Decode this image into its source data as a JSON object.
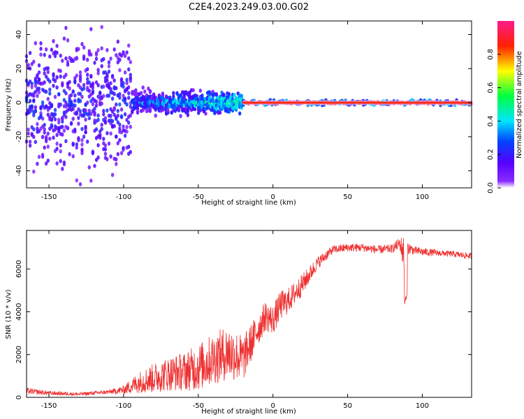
{
  "title": "C2E4.2023.249.03.00.G02",
  "chart_data": [
    {
      "type": "heatmap",
      "title": "C2E4.2023.249.03.00.G02",
      "xlabel": "Height of straight line (km)",
      "ylabel": "Frequency (Hz)",
      "xlim": [
        -165,
        133
      ],
      "ylim": [
        -50,
        48
      ],
      "xticks": [
        -150,
        -100,
        -50,
        0,
        50,
        100
      ],
      "xtick_labels": [
        "-150",
        "-100",
        "-50",
        "0",
        "50",
        "100"
      ],
      "yticks": [
        -40,
        -20,
        0,
        20,
        40
      ],
      "ytick_labels": [
        "-40",
        "-20",
        "0",
        "20",
        "40"
      ],
      "colorbar": {
        "label": "Normalized spectral amplitude",
        "range": [
          0,
          1
        ],
        "ticks": [
          0.0,
          0.2,
          0.4,
          0.6,
          0.8
        ],
        "tick_labels": [
          "0.0",
          "0.2",
          "0.4",
          "0.6",
          "0.8"
        ],
        "colors": [
          "#ffffff",
          "#7b00ff",
          "#0000ff",
          "#00ffff",
          "#00ff00",
          "#ffff00",
          "#ff0000",
          "#ff1a8c"
        ]
      },
      "description_regions": [
        {
          "x_range": [
            -165,
            -95
          ],
          "freq_spread": 48,
          "amplitude": 0.15
        },
        {
          "x_range": [
            -95,
            -20
          ],
          "freq_spread": 10,
          "amplitude": 0.4
        },
        {
          "x_range": [
            -20,
            133
          ],
          "freq_spread": 2,
          "amplitude": 0.95
        }
      ]
    },
    {
      "type": "line",
      "xlabel": "Height of straight line (km)",
      "ylabel": "SNR (10 * v/v)",
      "xlim": [
        -165,
        133
      ],
      "ylim": [
        0,
        7800
      ],
      "xticks": [
        -150,
        -100,
        -50,
        0,
        50,
        100
      ],
      "xtick_labels": [
        "-150",
        "-100",
        "-50",
        "0",
        "50",
        "100"
      ],
      "yticks": [
        0,
        2000,
        4000,
        6000
      ],
      "ytick_labels": [
        "0",
        "2000",
        "4000",
        "6000"
      ],
      "color": "#ee3030",
      "series": [
        {
          "name": "SNR",
          "x": [
            -165,
            -150,
            -130,
            -110,
            -100,
            -90,
            -80,
            -70,
            -60,
            -50,
            -40,
            -30,
            -20,
            -15,
            -10,
            -5,
            0,
            5,
            10,
            20,
            30,
            40,
            50,
            60,
            70,
            80,
            85,
            88,
            90,
            95,
            100,
            110,
            120,
            133
          ],
          "y": [
            300,
            200,
            150,
            250,
            350,
            700,
            900,
            1100,
            1200,
            1400,
            1800,
            2100,
            1800,
            2500,
            3200,
            3800,
            3600,
            4300,
            4500,
            5300,
            6300,
            6900,
            7000,
            7000,
            6900,
            6950,
            7200,
            6600,
            7000,
            6850,
            6800,
            6750,
            6700,
            6600
          ],
          "noise": [
            150,
            100,
            80,
            100,
            200,
            500,
            700,
            800,
            900,
            1100,
            1200,
            1300,
            1100,
            900,
            800,
            700,
            700,
            700,
            600,
            500,
            300,
            200,
            200,
            200,
            200,
            200,
            300,
            1000,
            300,
            200,
            200,
            150,
            150,
            150
          ]
        }
      ]
    }
  ]
}
